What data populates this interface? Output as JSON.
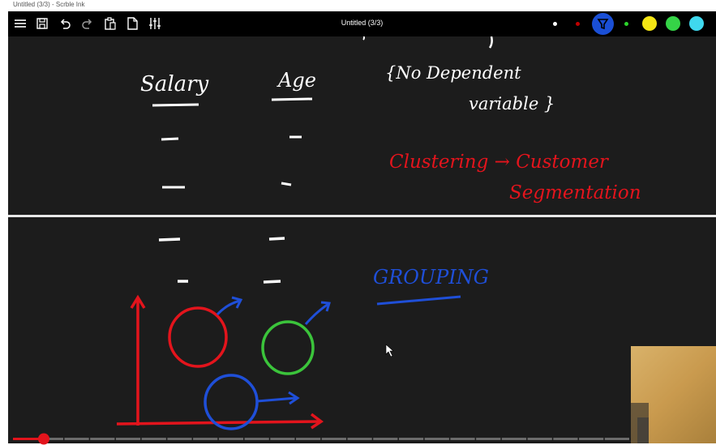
{
  "window": {
    "title": "Untitled (3/3) - Scrble Ink"
  },
  "toolbar": {
    "doc_title": "Untitled (3/3)",
    "icons": [
      "menu-icon",
      "save-icon",
      "undo-icon",
      "redo-icon",
      "paste-icon",
      "new-page-icon",
      "settings-sliders-icon"
    ],
    "colors": {
      "white": "#ffffff",
      "dark_red": "#c00000",
      "blue_active": "#1a4fd6",
      "green_small": "#2bd42b",
      "yellow": "#f5e614",
      "green": "#35d447",
      "cyan": "#3fd8ee"
    }
  },
  "board": {
    "top_panel": {
      "headers": [
        "Salary",
        "Age"
      ],
      "note_line1": "{No Dependent",
      "note_line2": "variable }",
      "red_text_line1": "Clustering → Customer",
      "red_text_line2": "Segmentation"
    },
    "bottom_panel": {
      "blue_text": "GROUPING"
    },
    "ink_colors": {
      "white": "#ffffff",
      "red": "#e3141c",
      "blue": "#1f4fd8",
      "green": "#3bc43b"
    }
  },
  "playback": {
    "progress": 0.05,
    "accent": "#e3141c"
  }
}
